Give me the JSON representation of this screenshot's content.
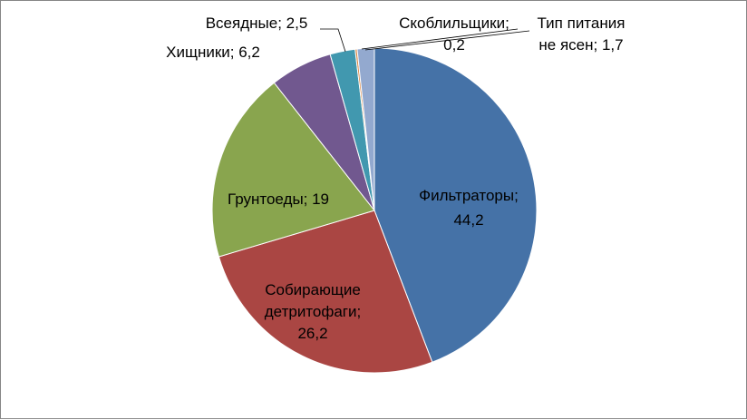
{
  "chart_data": {
    "type": "pie",
    "title": "",
    "categories": [
      "Фильтраторы",
      "Собирающие детритофаги",
      "Грунтоеды",
      "Хищники",
      "Всеядные",
      "Скоблильщики",
      "Тип питания не ясен"
    ],
    "values": [
      44.2,
      26.2,
      19,
      6.2,
      2.5,
      0.2,
      1.7
    ],
    "colors": [
      "#4572A7",
      "#AA4643",
      "#89A54E",
      "#71588F",
      "#4198AF",
      "#DB843D",
      "#93A9CF"
    ],
    "data_labels": [
      [
        "Фильтраторы;",
        "44,2"
      ],
      [
        "Собирающие",
        "детритофаги;",
        "26,2"
      ],
      [
        "Грунтоеды; 19"
      ],
      [
        "Хищники; 6,2"
      ],
      [
        "Всеядные; 2,5"
      ],
      [
        "Скоблильщики;",
        "0,2"
      ],
      [
        "Тип питания",
        "не ясен; 1,7"
      ]
    ],
    "legend": "none"
  }
}
